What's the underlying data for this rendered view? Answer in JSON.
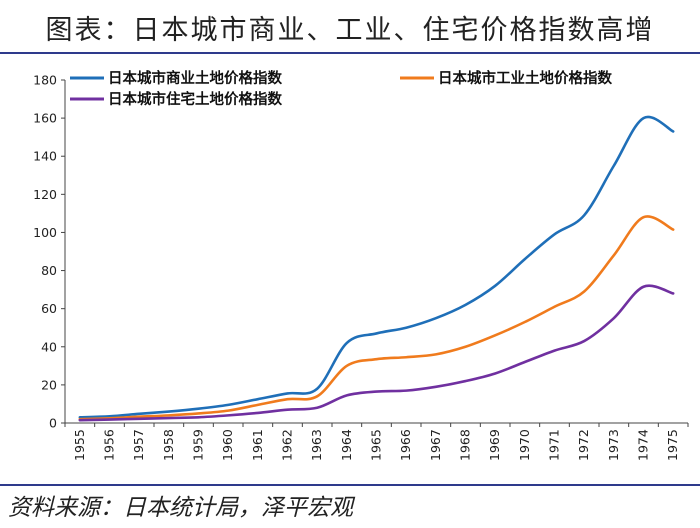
{
  "title": "图表：日本城市商业、工业、住宅价格指数高增",
  "source": "资料来源：日本统计局，泽平宏观",
  "chart_data": {
    "type": "line",
    "title": "图表：日本城市商业、工业、住宅价格指数高增",
    "xlabel": "",
    "ylabel": "",
    "ylim": [
      0,
      180
    ],
    "yticks": [
      0,
      20,
      40,
      60,
      80,
      100,
      120,
      140,
      160,
      180
    ],
    "x": [
      "1955",
      "1956",
      "1957",
      "1958",
      "1959",
      "1960",
      "1961",
      "1962",
      "1963",
      "1964",
      "1965",
      "1966",
      "1967",
      "1968",
      "1969",
      "1970",
      "1971",
      "1972",
      "1973",
      "1974",
      "1975"
    ],
    "series": [
      {
        "name": "日本城市商业土地价格指数",
        "color": "#1f6fb8",
        "values": [
          3,
          3.5,
          4.8,
          6,
          7.5,
          9.5,
          12.5,
          15.5,
          18,
          42,
          47,
          50,
          55,
          62,
          72,
          86,
          99,
          109,
          135,
          160,
          153
        ]
      },
      {
        "name": "日本城市工业土地价格指数",
        "color": "#f07b1d",
        "values": [
          2,
          2.5,
          3.3,
          4,
          5,
          6.5,
          9.5,
          12.5,
          14,
          30,
          33.5,
          34.5,
          36,
          40,
          46,
          53,
          61,
          69,
          88,
          108,
          101.5
        ]
      },
      {
        "name": "日本城市住宅土地价格指数",
        "color": "#7030a0",
        "values": [
          1.5,
          1.8,
          2.2,
          2.6,
          3,
          4,
          5.3,
          7,
          8,
          14.5,
          16.5,
          17,
          19,
          22,
          26,
          32,
          38,
          43,
          55,
          71.5,
          68
        ]
      }
    ],
    "legend": "top-left"
  }
}
